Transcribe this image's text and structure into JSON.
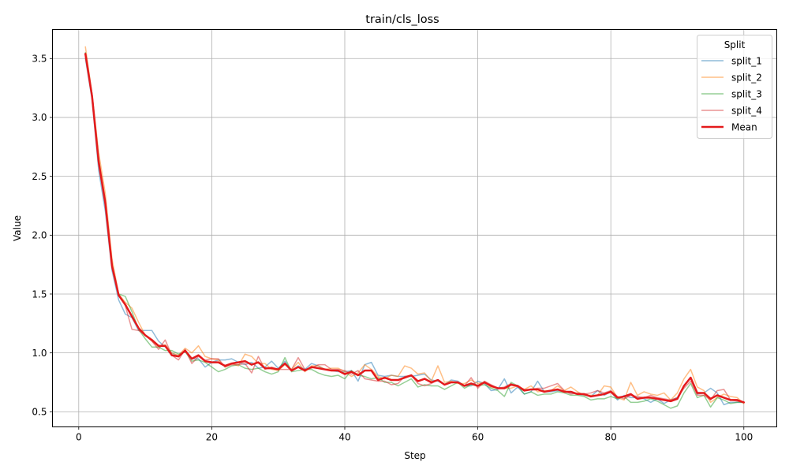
{
  "chart_data": {
    "type": "line",
    "title": "train/cls_loss",
    "xlabel": "Step",
    "ylabel": "Value",
    "xlim": [
      -3.95,
      104.95
    ],
    "ylim": [
      0.3717,
      3.7462
    ],
    "xticks": [
      0,
      20,
      40,
      60,
      80,
      100
    ],
    "yticks": [
      0.5,
      1.0,
      1.5,
      2.0,
      2.5,
      3.0,
      3.5
    ],
    "xtick_labels": [
      "0",
      "20",
      "40",
      "60",
      "80",
      "100"
    ],
    "ytick_labels": [
      "0.5",
      "1.0",
      "1.5",
      "2.0",
      "2.5",
      "3.0",
      "3.5"
    ],
    "grid": true,
    "legend": {
      "title": "Split",
      "position": "top-right"
    },
    "x": [
      1,
      2,
      3,
      4,
      5,
      6,
      7,
      8,
      9,
      10,
      11,
      12,
      13,
      14,
      15,
      16,
      17,
      18,
      19,
      20,
      21,
      22,
      23,
      24,
      25,
      26,
      27,
      28,
      29,
      30,
      31,
      32,
      33,
      34,
      35,
      36,
      37,
      38,
      39,
      40,
      41,
      42,
      43,
      44,
      45,
      46,
      47,
      48,
      49,
      50,
      51,
      52,
      53,
      54,
      55,
      56,
      57,
      58,
      59,
      60,
      61,
      62,
      63,
      64,
      65,
      66,
      67,
      68,
      69,
      70,
      71,
      72,
      73,
      74,
      75,
      76,
      77,
      78,
      79,
      80,
      81,
      82,
      83,
      84,
      85,
      86,
      87,
      88,
      89,
      90,
      91,
      92,
      93,
      94,
      95,
      96,
      97,
      98,
      99,
      100
    ],
    "series": [
      {
        "name": "split_1",
        "color": "#1f77b4",
        "alpha": 0.5,
        "width": 1.5,
        "values": [
          3.5,
          3.15,
          2.55,
          2.2,
          1.7,
          1.45,
          1.33,
          1.3,
          1.19,
          1.19,
          1.19,
          1.1,
          1.05,
          1.0,
          0.97,
          1.02,
          0.95,
          0.95,
          0.88,
          0.92,
          0.94,
          0.94,
          0.95,
          0.92,
          0.9,
          0.92,
          0.87,
          0.88,
          0.93,
          0.87,
          0.93,
          0.85,
          0.89,
          0.86,
          0.91,
          0.89,
          0.86,
          0.85,
          0.84,
          0.84,
          0.85,
          0.76,
          0.9,
          0.92,
          0.81,
          0.8,
          0.81,
          0.8,
          0.8,
          0.8,
          0.81,
          0.82,
          0.77,
          0.76,
          0.73,
          0.77,
          0.76,
          0.72,
          0.72,
          0.76,
          0.74,
          0.68,
          0.69,
          0.78,
          0.66,
          0.71,
          0.65,
          0.67,
          0.76,
          0.67,
          0.67,
          0.68,
          0.67,
          0.66,
          0.65,
          0.64,
          0.63,
          0.68,
          0.64,
          0.67,
          0.6,
          0.64,
          0.62,
          0.62,
          0.61,
          0.58,
          0.61,
          0.57,
          0.6,
          0.62,
          0.72,
          0.79,
          0.65,
          0.66,
          0.7,
          0.66,
          0.56,
          0.58,
          0.58,
          0.58
        ]
      },
      {
        "name": "split_2",
        "color": "#ff7f0e",
        "alpha": 0.5,
        "width": 1.5,
        "values": [
          3.6,
          3.2,
          2.7,
          2.35,
          1.8,
          1.5,
          1.43,
          1.38,
          1.26,
          1.15,
          1.1,
          1.05,
          1.07,
          1.0,
          0.98,
          1.04,
          1.0,
          1.06,
          0.97,
          0.95,
          0.94,
          0.88,
          0.91,
          0.89,
          0.99,
          0.97,
          0.91,
          0.91,
          0.86,
          0.85,
          0.9,
          0.86,
          0.92,
          0.84,
          0.89,
          0.89,
          0.86,
          0.87,
          0.87,
          0.84,
          0.8,
          0.83,
          0.9,
          0.86,
          0.8,
          0.78,
          0.81,
          0.8,
          0.89,
          0.87,
          0.82,
          0.83,
          0.76,
          0.89,
          0.75,
          0.76,
          0.74,
          0.74,
          0.77,
          0.74,
          0.75,
          0.71,
          0.7,
          0.7,
          0.7,
          0.72,
          0.69,
          0.72,
          0.67,
          0.68,
          0.68,
          0.72,
          0.68,
          0.71,
          0.67,
          0.64,
          0.64,
          0.64,
          0.72,
          0.71,
          0.62,
          0.6,
          0.75,
          0.64,
          0.67,
          0.65,
          0.64,
          0.66,
          0.6,
          0.66,
          0.78,
          0.86,
          0.71,
          0.68,
          0.58,
          0.62,
          0.65,
          0.63,
          0.62,
          0.57
        ]
      },
      {
        "name": "split_3",
        "color": "#2ca02c",
        "alpha": 0.5,
        "width": 1.5,
        "values": [
          3.55,
          3.2,
          2.65,
          2.25,
          1.75,
          1.5,
          1.48,
          1.35,
          1.2,
          1.12,
          1.05,
          1.05,
          1.02,
          1.02,
          0.99,
          1.01,
          0.93,
          0.94,
          0.92,
          0.88,
          0.84,
          0.86,
          0.89,
          0.9,
          0.87,
          0.86,
          0.87,
          0.84,
          0.82,
          0.84,
          0.96,
          0.84,
          0.85,
          0.86,
          0.86,
          0.83,
          0.81,
          0.8,
          0.81,
          0.78,
          0.85,
          0.81,
          0.8,
          0.78,
          0.79,
          0.75,
          0.75,
          0.72,
          0.75,
          0.78,
          0.71,
          0.73,
          0.72,
          0.72,
          0.69,
          0.72,
          0.75,
          0.7,
          0.73,
          0.72,
          0.73,
          0.7,
          0.68,
          0.63,
          0.75,
          0.72,
          0.65,
          0.67,
          0.64,
          0.65,
          0.65,
          0.67,
          0.66,
          0.64,
          0.64,
          0.63,
          0.6,
          0.61,
          0.61,
          0.63,
          0.61,
          0.63,
          0.58,
          0.58,
          0.59,
          0.61,
          0.59,
          0.56,
          0.53,
          0.55,
          0.66,
          0.74,
          0.62,
          0.64,
          0.54,
          0.62,
          0.6,
          0.57,
          0.58,
          0.58
        ]
      },
      {
        "name": "split_4",
        "color": "#d62728",
        "alpha": 0.5,
        "width": 1.5,
        "values": [
          3.52,
          3.18,
          2.6,
          2.3,
          1.72,
          1.5,
          1.4,
          1.2,
          1.19,
          1.15,
          1.1,
          1.03,
          1.11,
          0.98,
          0.94,
          1.03,
          0.91,
          0.97,
          0.94,
          0.95,
          0.95,
          0.88,
          0.9,
          0.9,
          0.91,
          0.83,
          0.97,
          0.86,
          0.88,
          0.86,
          0.86,
          0.86,
          0.96,
          0.86,
          0.87,
          0.9,
          0.9,
          0.86,
          0.86,
          0.85,
          0.82,
          0.85,
          0.78,
          0.77,
          0.76,
          0.76,
          0.73,
          0.74,
          0.8,
          0.81,
          0.74,
          0.72,
          0.74,
          0.77,
          0.73,
          0.75,
          0.75,
          0.72,
          0.79,
          0.7,
          0.76,
          0.73,
          0.7,
          0.71,
          0.74,
          0.71,
          0.69,
          0.69,
          0.7,
          0.7,
          0.72,
          0.74,
          0.68,
          0.65,
          0.66,
          0.65,
          0.66,
          0.68,
          0.66,
          0.68,
          0.63,
          0.61,
          0.64,
          0.63,
          0.62,
          0.64,
          0.62,
          0.61,
          0.6,
          0.62,
          0.7,
          0.76,
          0.64,
          0.64,
          0.6,
          0.68,
          0.69,
          0.6,
          0.59,
          0.58
        ]
      },
      {
        "name": "Mean",
        "color": "#e41a1c",
        "alpha": 1.0,
        "width": 2.5,
        "values": [
          3.54,
          3.18,
          2.62,
          2.27,
          1.74,
          1.49,
          1.41,
          1.31,
          1.21,
          1.15,
          1.11,
          1.06,
          1.06,
          0.98,
          0.97,
          1.02,
          0.95,
          0.98,
          0.93,
          0.92,
          0.92,
          0.89,
          0.91,
          0.92,
          0.93,
          0.9,
          0.92,
          0.87,
          0.87,
          0.86,
          0.91,
          0.85,
          0.88,
          0.85,
          0.88,
          0.87,
          0.86,
          0.85,
          0.85,
          0.82,
          0.84,
          0.81,
          0.85,
          0.85,
          0.77,
          0.79,
          0.77,
          0.77,
          0.79,
          0.81,
          0.76,
          0.78,
          0.75,
          0.77,
          0.73,
          0.75,
          0.75,
          0.72,
          0.74,
          0.72,
          0.75,
          0.72,
          0.7,
          0.7,
          0.73,
          0.72,
          0.68,
          0.69,
          0.69,
          0.67,
          0.68,
          0.69,
          0.67,
          0.67,
          0.65,
          0.65,
          0.63,
          0.64,
          0.65,
          0.67,
          0.62,
          0.63,
          0.65,
          0.61,
          0.62,
          0.62,
          0.61,
          0.6,
          0.59,
          0.61,
          0.72,
          0.79,
          0.66,
          0.66,
          0.61,
          0.64,
          0.62,
          0.6,
          0.6,
          0.58
        ]
      }
    ]
  }
}
